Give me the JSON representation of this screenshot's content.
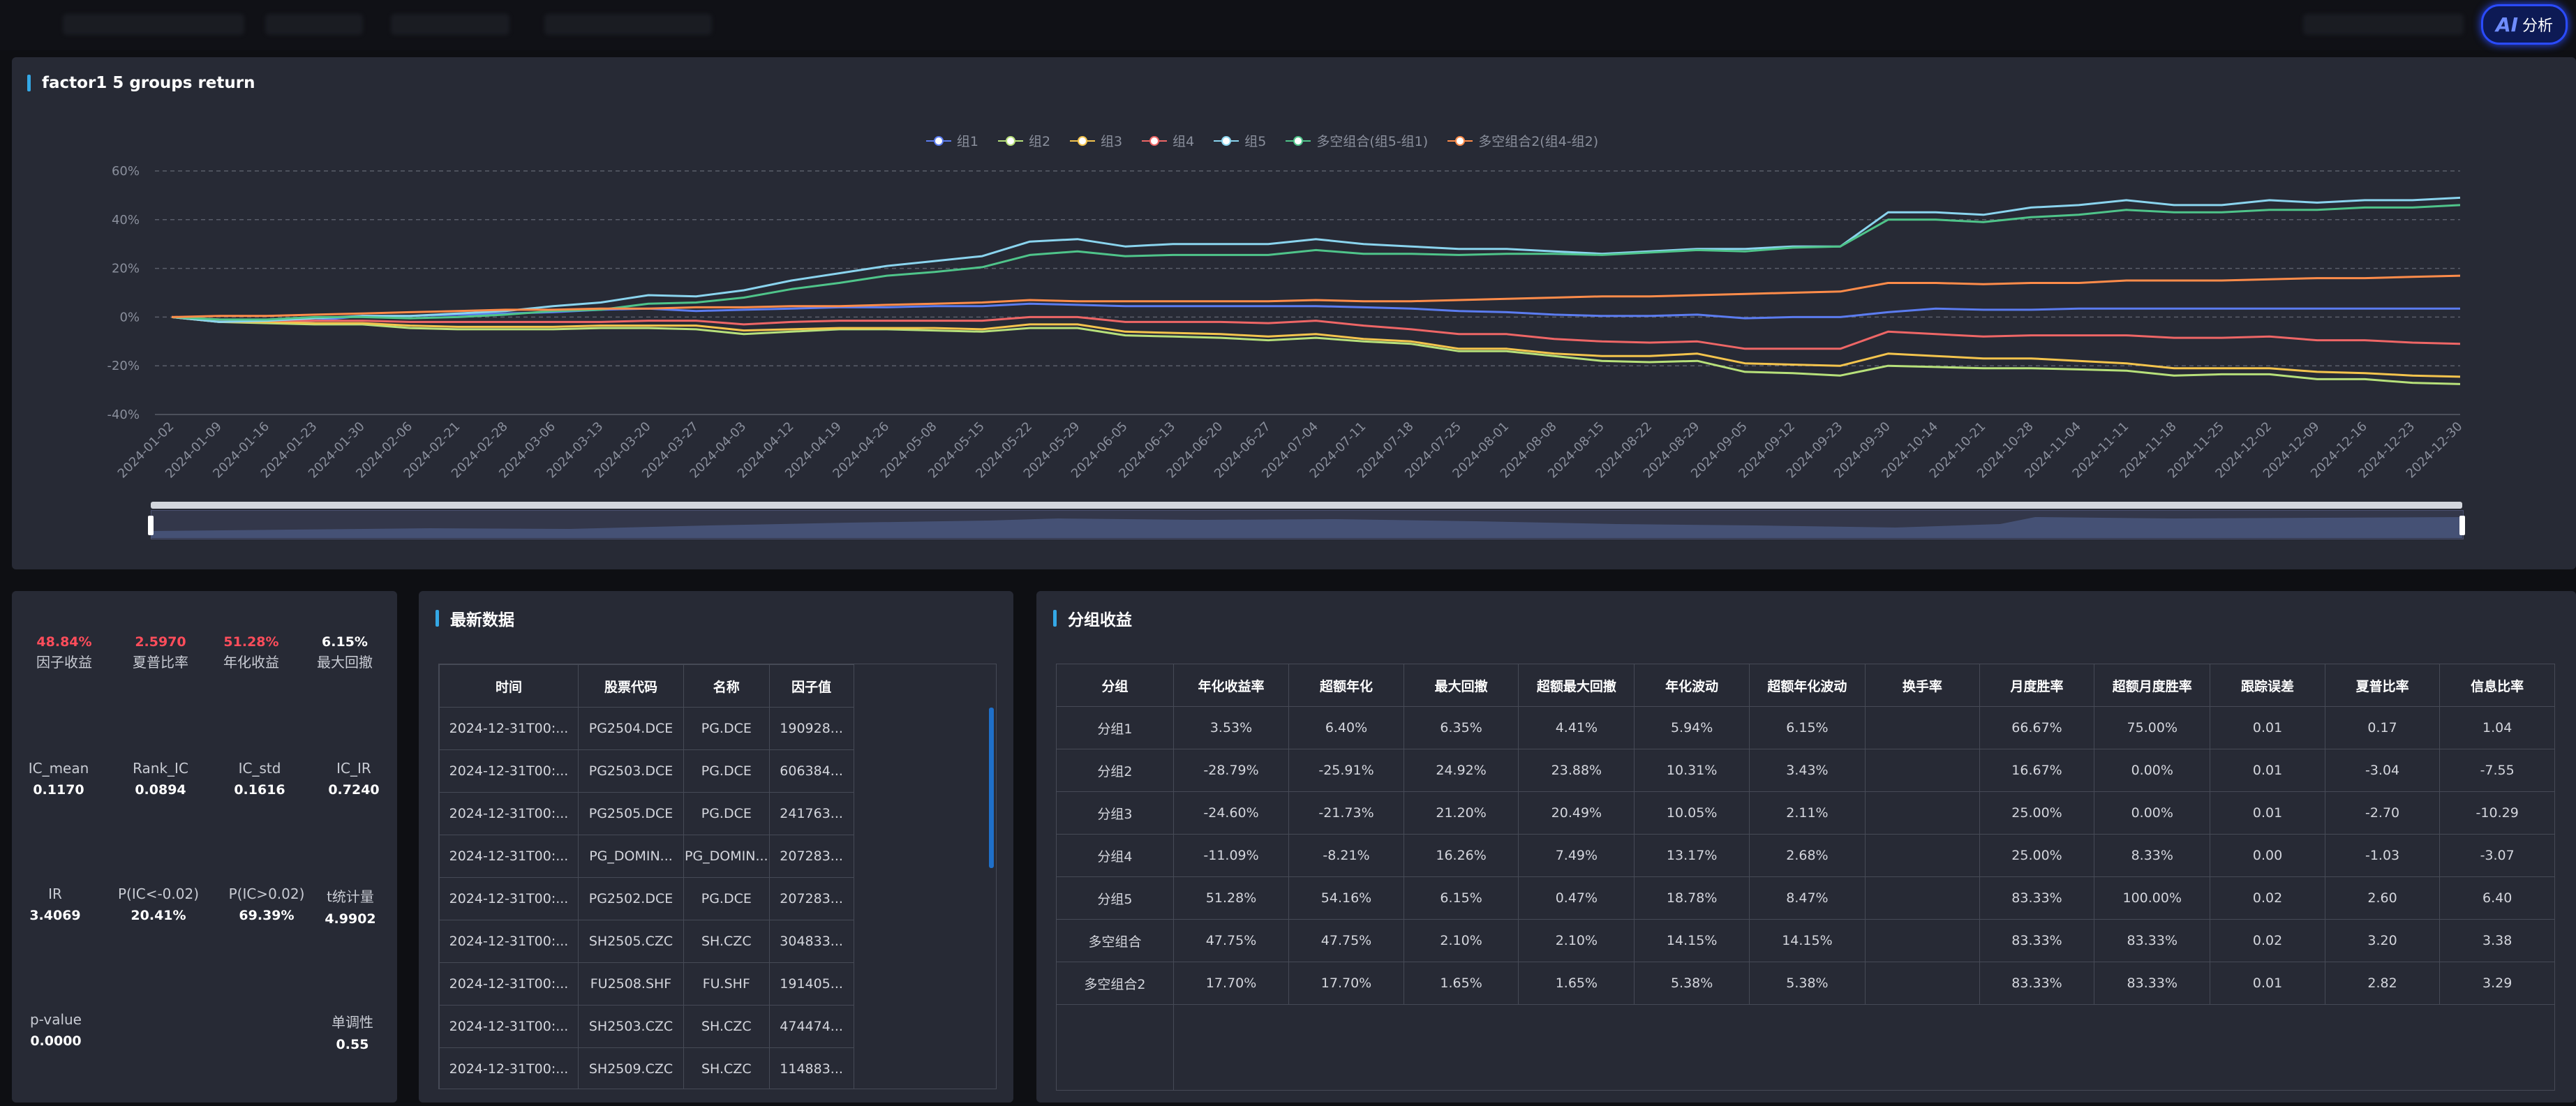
{
  "topbar": {
    "ai_label": "AI",
    "ai_text": "分析"
  },
  "chart_panel": {
    "title": "factor1 5 groups return"
  },
  "chart_data": {
    "type": "line",
    "title": "factor1 5 groups return",
    "xlabel": "",
    "ylabel": "",
    "ylim": [
      -40,
      60
    ],
    "y_ticks": [
      "60%",
      "40%",
      "20%",
      "0%",
      "-20%",
      "-40%"
    ],
    "categories": [
      "2024-01-02",
      "2024-01-09",
      "2024-01-16",
      "2024-01-23",
      "2024-01-30",
      "2024-02-06",
      "2024-02-21",
      "2024-02-28",
      "2024-03-06",
      "2024-03-13",
      "2024-03-20",
      "2024-03-27",
      "2024-04-03",
      "2024-04-12",
      "2024-04-19",
      "2024-04-26",
      "2024-05-08",
      "2024-05-15",
      "2024-05-22",
      "2024-05-29",
      "2024-06-05",
      "2024-06-13",
      "2024-06-20",
      "2024-06-27",
      "2024-07-04",
      "2024-07-11",
      "2024-07-18",
      "2024-07-25",
      "2024-08-01",
      "2024-08-08",
      "2024-08-15",
      "2024-08-22",
      "2024-08-29",
      "2024-09-05",
      "2024-09-12",
      "2024-09-23",
      "2024-09-30",
      "2024-10-14",
      "2024-10-21",
      "2024-10-28",
      "2024-11-04",
      "2024-11-11",
      "2024-11-18",
      "2024-11-25",
      "2024-12-02",
      "2024-12-09",
      "2024-12-16",
      "2024-12-23",
      "2024-12-30"
    ],
    "grid": true,
    "legend_position": "top-center",
    "series": [
      {
        "name": "组1",
        "color": "#5b7cf0",
        "values": [
          0,
          -1.5,
          -2,
          -1.5,
          0.5,
          0.5,
          1,
          1.5,
          2,
          3,
          3.5,
          2.5,
          3,
          3.5,
          4,
          4,
          4.5,
          4.5,
          5.5,
          5,
          4.5,
          4.5,
          4.5,
          4.5,
          4.5,
          4,
          3.5,
          2.5,
          2,
          1,
          0.5,
          0.5,
          1,
          -0.5,
          0,
          0,
          2,
          3.5,
          3,
          3,
          3.5,
          3.5,
          3.5,
          3.5,
          3.5,
          3.5,
          3.5,
          3.5,
          3.5
        ]
      },
      {
        "name": "组2",
        "color": "#b7e07a",
        "values": [
          0,
          -2,
          -2.5,
          -3,
          -3,
          -4.5,
          -5,
          -5,
          -5,
          -4.5,
          -4.5,
          -5,
          -7,
          -6,
          -5,
          -5,
          -5.5,
          -6,
          -4.5,
          -4.5,
          -7.5,
          -8,
          -8.5,
          -9.5,
          -8.5,
          -10,
          -11,
          -14,
          -14,
          -16,
          -18,
          -18.5,
          -18,
          -22.5,
          -23,
          -24,
          -20,
          -20.5,
          -21,
          -21,
          -21.5,
          -22,
          -24,
          -23.5,
          -23.5,
          -25.5,
          -25.5,
          -27,
          -27.5
        ]
      },
      {
        "name": "组3",
        "color": "#f4c44d",
        "values": [
          0,
          -2,
          -2,
          -2.5,
          -2.5,
          -3.5,
          -4,
          -4,
          -4,
          -3.5,
          -3.5,
          -3.5,
          -5.5,
          -5,
          -4.5,
          -4.5,
          -4.5,
          -5,
          -3,
          -3,
          -6,
          -6.5,
          -7,
          -8,
          -7,
          -9,
          -10,
          -13,
          -13,
          -15,
          -16,
          -16,
          -15,
          -19,
          -19.5,
          -20,
          -15,
          -16,
          -17,
          -17,
          -18,
          -19,
          -21,
          -21,
          -21,
          -22.5,
          -23,
          -24,
          -24.5
        ]
      },
      {
        "name": "组4",
        "color": "#ee6666",
        "values": [
          0,
          -1,
          -1.5,
          -1.5,
          -1.5,
          -2,
          -2,
          -2,
          -2,
          -2,
          -1.5,
          -1.5,
          -3,
          -2,
          -1.5,
          -1.5,
          -1.5,
          -1.5,
          0,
          0,
          -2,
          -2,
          -2,
          -2.5,
          -1.5,
          -3.5,
          -5,
          -7,
          -7,
          -9,
          -10,
          -10.5,
          -10,
          -13,
          -13,
          -13,
          -6,
          -7,
          -8,
          -7.5,
          -7.5,
          -7.5,
          -8.5,
          -8.5,
          -8,
          -9.5,
          -9.5,
          -10.5,
          -11
        ]
      },
      {
        "name": "组5",
        "color": "#8ad4ee",
        "values": [
          0,
          -2,
          -1.5,
          -0.5,
          0.5,
          0.5,
          1.5,
          2.5,
          4.5,
          6,
          9,
          8.5,
          11,
          15,
          18,
          21,
          23,
          25,
          31,
          32,
          29,
          30,
          30,
          30,
          32,
          30,
          29,
          28,
          28,
          27,
          26,
          27,
          28,
          28,
          29,
          29,
          43,
          43,
          42,
          45,
          46,
          48,
          46,
          46,
          48,
          47,
          48,
          48,
          49
        ]
      },
      {
        "name": "多空组合(组5-组1)",
        "color": "#4fc48a",
        "values": [
          0,
          -1,
          -1,
          0,
          0,
          -0.5,
          0,
          1,
          2.5,
          3,
          5.5,
          6,
          8,
          11.5,
          14,
          17,
          18.5,
          20.5,
          25.5,
          27,
          25,
          25.5,
          25.5,
          25.5,
          27.5,
          26,
          26,
          25.5,
          26,
          26,
          25.5,
          26.5,
          27.5,
          27,
          28.5,
          29,
          40,
          40,
          39,
          41,
          42,
          44,
          43,
          43,
          44,
          44,
          45,
          45,
          46
        ]
      },
      {
        "name": "多空组合2(组4-组2)",
        "color": "#ff8c4a",
        "values": [
          0,
          0.5,
          0.5,
          1,
          1.5,
          2,
          2.5,
          3,
          3,
          3.5,
          3.5,
          4,
          4,
          4.5,
          4.5,
          5,
          5.5,
          6,
          7,
          6.5,
          6.5,
          6.5,
          6.5,
          6.5,
          7,
          6.5,
          6.5,
          7,
          7.5,
          8,
          8.5,
          8.5,
          9,
          9.5,
          10,
          10.5,
          14,
          14,
          13.5,
          14,
          14,
          15,
          15,
          15,
          15.5,
          16,
          16,
          16.5,
          17
        ]
      }
    ]
  },
  "metrics": {
    "row1": [
      {
        "value": "48.84%",
        "label": "因子收益",
        "color": "red"
      },
      {
        "value": "2.5970",
        "label": "夏普比率",
        "color": "red"
      },
      {
        "value": "51.28%",
        "label": "年化收益",
        "color": "red"
      },
      {
        "value": "6.15%",
        "label": "最大回撤",
        "color": "white"
      }
    ],
    "row2": [
      {
        "label": "IC_mean",
        "value": "0.1170"
      },
      {
        "label": "Rank_IC",
        "value": "0.0894"
      },
      {
        "label": "IC_std",
        "value": "0.1616"
      },
      {
        "label": "IC_IR",
        "value": "0.7240"
      }
    ],
    "row3": [
      {
        "label": "IR",
        "value": "3.4069"
      },
      {
        "label": "P(IC<-0.02)",
        "value": "20.41%"
      },
      {
        "label": "P(IC>0.02)",
        "value": "69.39%"
      },
      {
        "label": "t统计量",
        "value": "4.9902"
      }
    ],
    "row4": [
      {
        "label": "p-value",
        "value": "0.0000"
      },
      {
        "label": "单调性",
        "value": "0.55"
      }
    ]
  },
  "latest": {
    "title": "最新数据",
    "headers": [
      "时间",
      "股票代码",
      "名称",
      "因子值"
    ],
    "rows": [
      [
        "2024-12-31T00:...",
        "PG2504.DCE",
        "PG.DCE",
        "190928..."
      ],
      [
        "2024-12-31T00:...",
        "PG2503.DCE",
        "PG.DCE",
        "606384..."
      ],
      [
        "2024-12-31T00:...",
        "PG2505.DCE",
        "PG.DCE",
        "241763..."
      ],
      [
        "2024-12-31T00:...",
        "PG_DOMIN...",
        "PG_DOMIN...",
        "207283..."
      ],
      [
        "2024-12-31T00:...",
        "PG2502.DCE",
        "PG.DCE",
        "207283..."
      ],
      [
        "2024-12-31T00:...",
        "SH2505.CZC",
        "SH.CZC",
        "304833..."
      ],
      [
        "2024-12-31T00:...",
        "FU2508.SHF",
        "FU.SHF",
        "191405..."
      ],
      [
        "2024-12-31T00:...",
        "SH2503.CZC",
        "SH.CZC",
        "474474..."
      ],
      [
        "2024-12-31T00:...",
        "SH2509.CZC",
        "SH.CZC",
        "114883..."
      ]
    ]
  },
  "group_returns": {
    "title": "分组收益",
    "headers": [
      "分组",
      "年化收益率",
      "超额年化",
      "最大回撤",
      "超额最大回撤",
      "年化波动",
      "超额年化波动",
      "换手率",
      "月度胜率",
      "超额月度胜率",
      "跟踪误差",
      "夏普比率",
      "信息比率"
    ],
    "rows": [
      [
        "分组1",
        "3.53%",
        "6.40%",
        "6.35%",
        "4.41%",
        "5.94%",
        "6.15%",
        "",
        "66.67%",
        "75.00%",
        "0.01",
        "0.17",
        "1.04"
      ],
      [
        "分组2",
        "-28.79%",
        "-25.91%",
        "24.92%",
        "23.88%",
        "10.31%",
        "3.43%",
        "",
        "16.67%",
        "0.00%",
        "0.01",
        "-3.04",
        "-7.55"
      ],
      [
        "分组3",
        "-24.60%",
        "-21.73%",
        "21.20%",
        "20.49%",
        "10.05%",
        "2.11%",
        "",
        "25.00%",
        "0.00%",
        "0.01",
        "-2.70",
        "-10.29"
      ],
      [
        "分组4",
        "-11.09%",
        "-8.21%",
        "16.26%",
        "7.49%",
        "13.17%",
        "2.68%",
        "",
        "25.00%",
        "8.33%",
        "0.00",
        "-1.03",
        "-3.07"
      ],
      [
        "分组5",
        "51.28%",
        "54.16%",
        "6.15%",
        "0.47%",
        "18.78%",
        "8.47%",
        "",
        "83.33%",
        "100.00%",
        "0.02",
        "2.60",
        "6.40"
      ],
      [
        "多空组合",
        "47.75%",
        "47.75%",
        "2.10%",
        "2.10%",
        "14.15%",
        "14.15%",
        "",
        "83.33%",
        "83.33%",
        "0.02",
        "3.20",
        "3.38"
      ],
      [
        "多空组合2",
        "17.70%",
        "17.70%",
        "1.65%",
        "1.65%",
        "5.38%",
        "5.38%",
        "",
        "83.33%",
        "83.33%",
        "0.01",
        "2.82",
        "3.29"
      ]
    ]
  }
}
